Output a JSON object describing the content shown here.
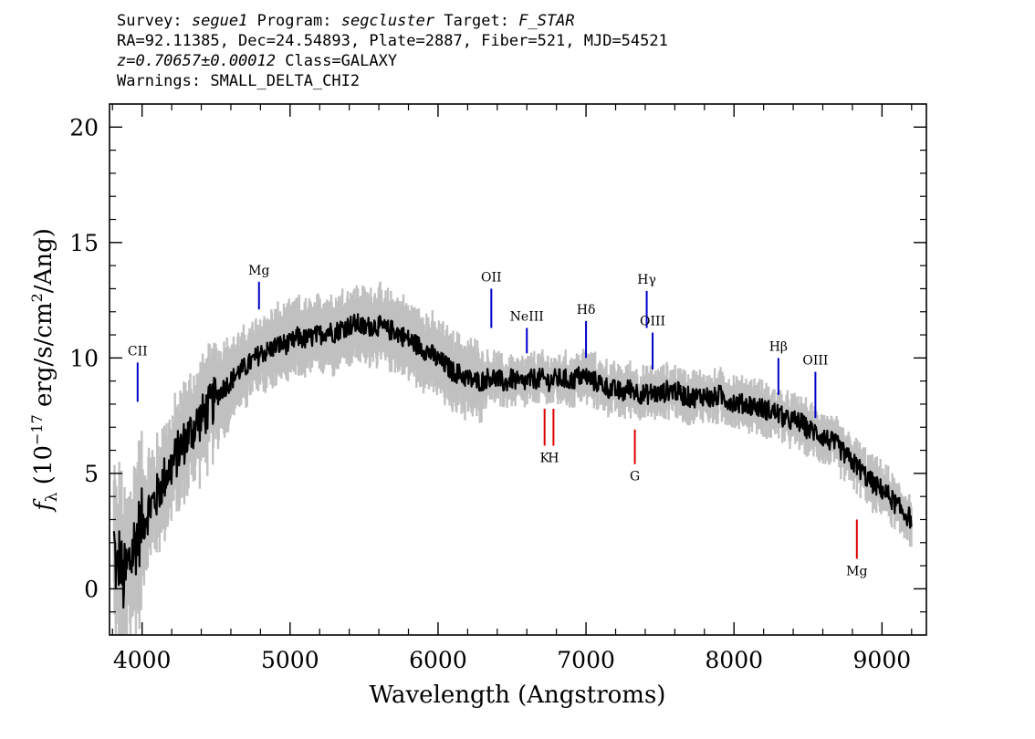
{
  "header": {
    "survey_label": "Survey:",
    "survey": "segue1",
    "program_label": "Program:",
    "program": "segcluster",
    "target_label": "Target:",
    "target": "F_STAR",
    "coords": "RA=92.11385, Dec=24.54893, Plate=2887, Fiber=521, MJD=54521",
    "redshift": "z=0.70657±0.00012",
    "class": "Class=GALAXY",
    "warnings": "Warnings: SMALL_DELTA_CHI2"
  },
  "colors": {
    "flux": "#000000",
    "error_band": "#c0c0c0",
    "emission_line": "#0000cc",
    "absorption_line": "#dd0000"
  },
  "chart_data": {
    "type": "line",
    "xlabel": "Wavelength (Angstroms)",
    "ylabel": "f_λ (10^-17 erg/s/cm^2/Ang)",
    "ylabel_parts": {
      "f": "f",
      "sub": "λ",
      "pre": " (10",
      "exp1": "−17",
      "mid": " erg/s/cm",
      "exp2": "2",
      "post": "/Ang)"
    },
    "xlim": [
      3780,
      9300
    ],
    "ylim": [
      -2,
      21
    ],
    "xticks": [
      4000,
      5000,
      6000,
      7000,
      8000,
      9000
    ],
    "yticks": [
      0,
      5,
      10,
      15,
      20
    ],
    "grid": false,
    "series": [
      {
        "kind": "flux",
        "x": [
          3810,
          3830,
          3850,
          3870,
          3900,
          3930,
          3960,
          4000,
          4050,
          4100,
          4150,
          4200,
          4250,
          4300,
          4350,
          4400,
          4450,
          4500,
          4550,
          4600,
          4650,
          4700,
          4750,
          4800,
          4850,
          4900,
          4950,
          5000,
          5050,
          5100,
          5150,
          5200,
          5250,
          5300,
          5350,
          5400,
          5450,
          5500,
          5550,
          5600,
          5650,
          5700,
          5750,
          5800,
          5850,
          5900,
          5950,
          6000,
          6050,
          6100,
          6150,
          6200,
          6250,
          6300,
          6350,
          6400,
          6450,
          6500,
          6550,
          6600,
          6650,
          6700,
          6750,
          6800,
          6850,
          6900,
          6950,
          7000,
          7050,
          7100,
          7150,
          7200,
          7250,
          7300,
          7350,
          7400,
          7450,
          7500,
          7550,
          7600,
          7650,
          7700,
          7750,
          7800,
          7850,
          7900,
          7950,
          8000,
          8050,
          8100,
          8150,
          8200,
          8250,
          8300,
          8350,
          8400,
          8450,
          8500,
          8550,
          8600,
          8650,
          8700,
          8750,
          8800,
          8850,
          8900,
          8950,
          9000,
          9050,
          9100,
          9150,
          9200
        ],
        "y": [
          2.0,
          0.5,
          1.5,
          0.2,
          0.8,
          1.5,
          2.2,
          2.8,
          3.5,
          4.0,
          4.8,
          5.3,
          6.0,
          6.5,
          7.0,
          7.4,
          7.8,
          8.3,
          8.7,
          9.0,
          9.4,
          9.6,
          9.9,
          10.2,
          10.3,
          10.5,
          10.6,
          10.6,
          10.9,
          10.8,
          10.9,
          11.0,
          11.2,
          11.1,
          11.3,
          11.4,
          11.5,
          11.3,
          11.4,
          11.4,
          11.2,
          11.2,
          11.0,
          10.8,
          10.6,
          10.4,
          10.2,
          9.9,
          9.7,
          9.4,
          9.3,
          9.1,
          9.0,
          9.0,
          9.2,
          9.1,
          8.9,
          9.1,
          8.9,
          9.0,
          9.1,
          9.1,
          9.0,
          9.1,
          9.1,
          9.0,
          9.2,
          9.2,
          9.0,
          8.9,
          8.7,
          8.6,
          8.5,
          8.7,
          8.5,
          8.4,
          8.5,
          8.4,
          8.6,
          8.6,
          8.4,
          8.3,
          8.3,
          8.4,
          8.2,
          8.4,
          8.2,
          8.1,
          8.0,
          8.0,
          7.9,
          7.8,
          7.7,
          7.6,
          7.3,
          7.3,
          7.2,
          6.9,
          6.8,
          6.6,
          6.4,
          6.2,
          5.8,
          5.5,
          5.2,
          4.8,
          4.5,
          4.3,
          4.0,
          3.6,
          3.3,
          3.0
        ]
      }
    ],
    "line_markers": [
      {
        "label": "CII",
        "x": 3970,
        "y_top": 9.8,
        "y_bottom": 8.1,
        "color": "#0000cc",
        "label_pos": "above"
      },
      {
        "label": "Mg",
        "x": 4790,
        "y_top": 13.3,
        "y_bottom": 12.1,
        "color": "#0000cc",
        "label_pos": "above"
      },
      {
        "label": "OII",
        "x": 6360,
        "y_top": 13.0,
        "y_bottom": 11.3,
        "color": "#0000cc",
        "label_pos": "above"
      },
      {
        "label": "NeIII",
        "x": 6600,
        "y_top": 11.3,
        "y_bottom": 10.2,
        "color": "#0000cc",
        "label_pos": "above"
      },
      {
        "label": "Hδ",
        "x": 7000,
        "y_top": 11.6,
        "y_bottom": 10.0,
        "color": "#0000cc",
        "label_pos": "above"
      },
      {
        "label": "Hγ",
        "x": 7410,
        "y_top": 12.9,
        "y_bottom": 11.3,
        "color": "#0000cc",
        "label_pos": "above"
      },
      {
        "label": "OIII",
        "x": 7450,
        "y_top": 11.1,
        "y_bottom": 9.5,
        "color": "#0000cc",
        "label_pos": "above"
      },
      {
        "label": "Hβ",
        "x": 8300,
        "y_top": 10.0,
        "y_bottom": 8.4,
        "color": "#0000cc",
        "label_pos": "above"
      },
      {
        "label": "OIII",
        "x": 8550,
        "y_top": 9.4,
        "y_bottom": 7.4,
        "color": "#0000cc",
        "label_pos": "above"
      },
      {
        "label": "K",
        "x": 6720,
        "y_top": 7.8,
        "y_bottom": 6.2,
        "color": "#dd0000",
        "label_pos": "below"
      },
      {
        "label": "H",
        "x": 6780,
        "y_top": 7.8,
        "y_bottom": 6.2,
        "color": "#dd0000",
        "label_pos": "below"
      },
      {
        "label": "G",
        "x": 7330,
        "y_top": 6.9,
        "y_bottom": 5.4,
        "color": "#dd0000",
        "label_pos": "below"
      },
      {
        "label": "Mg",
        "x": 8830,
        "y_top": 3.0,
        "y_bottom": 1.3,
        "color": "#dd0000",
        "label_pos": "below"
      }
    ]
  }
}
